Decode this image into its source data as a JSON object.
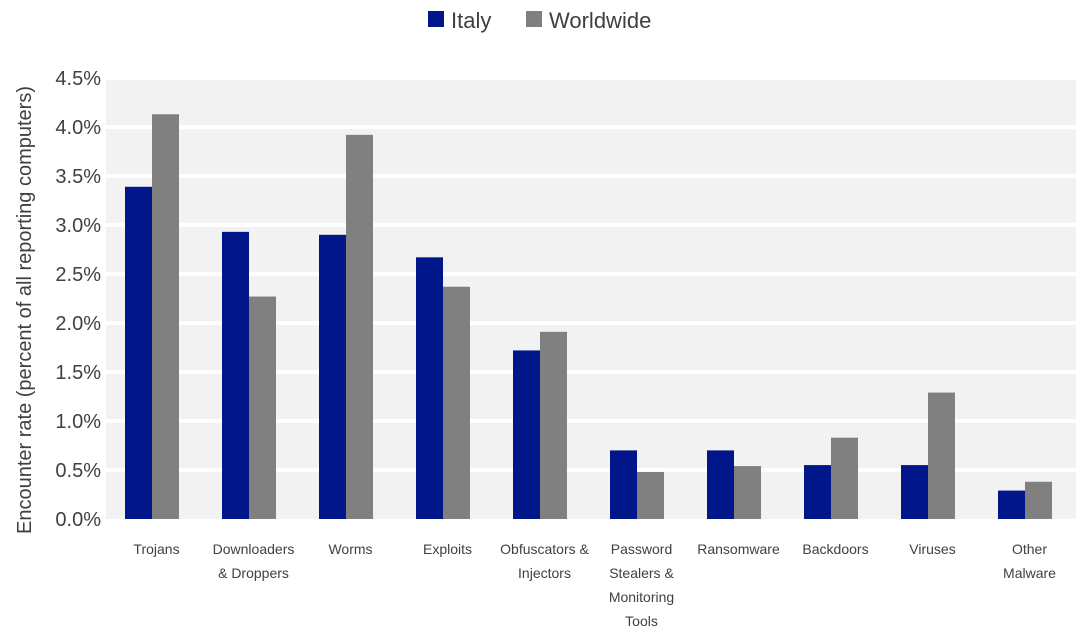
{
  "chart_data": {
    "type": "bar",
    "title": "",
    "xlabel": "",
    "ylabel": "Encounter rate (percent of all reporting computers)",
    "ylim": [
      0,
      4.5
    ],
    "yticks": [
      "0.0%",
      "0.5%",
      "1.0%",
      "1.5%",
      "2.0%",
      "2.5%",
      "3.0%",
      "3.5%",
      "4.0%",
      "4.5%"
    ],
    "grid": true,
    "legend_position": "top-center",
    "categories": [
      [
        "Trojans"
      ],
      [
        "Downloaders",
        "& Droppers"
      ],
      [
        "Worms"
      ],
      [
        "Exploits"
      ],
      [
        "Obfuscators &",
        "Injectors"
      ],
      [
        "Password",
        "Stealers &",
        "Monitoring",
        "Tools"
      ],
      [
        "Ransomware"
      ],
      [
        "Backdoors"
      ],
      [
        "Viruses"
      ],
      [
        "Other",
        "Malware"
      ]
    ],
    "series": [
      {
        "name": "Italy",
        "color": "#001689",
        "values": [
          3.39,
          2.93,
          2.9,
          2.67,
          1.72,
          0.7,
          0.7,
          0.55,
          0.55,
          0.29
        ]
      },
      {
        "name": "Worldwide",
        "color": "#808080",
        "values": [
          4.13,
          2.27,
          3.92,
          2.37,
          1.91,
          0.48,
          0.54,
          0.83,
          1.29,
          0.38
        ]
      }
    ],
    "plot_background": "#f2f2f2",
    "gridline_color": "#ffffff"
  }
}
